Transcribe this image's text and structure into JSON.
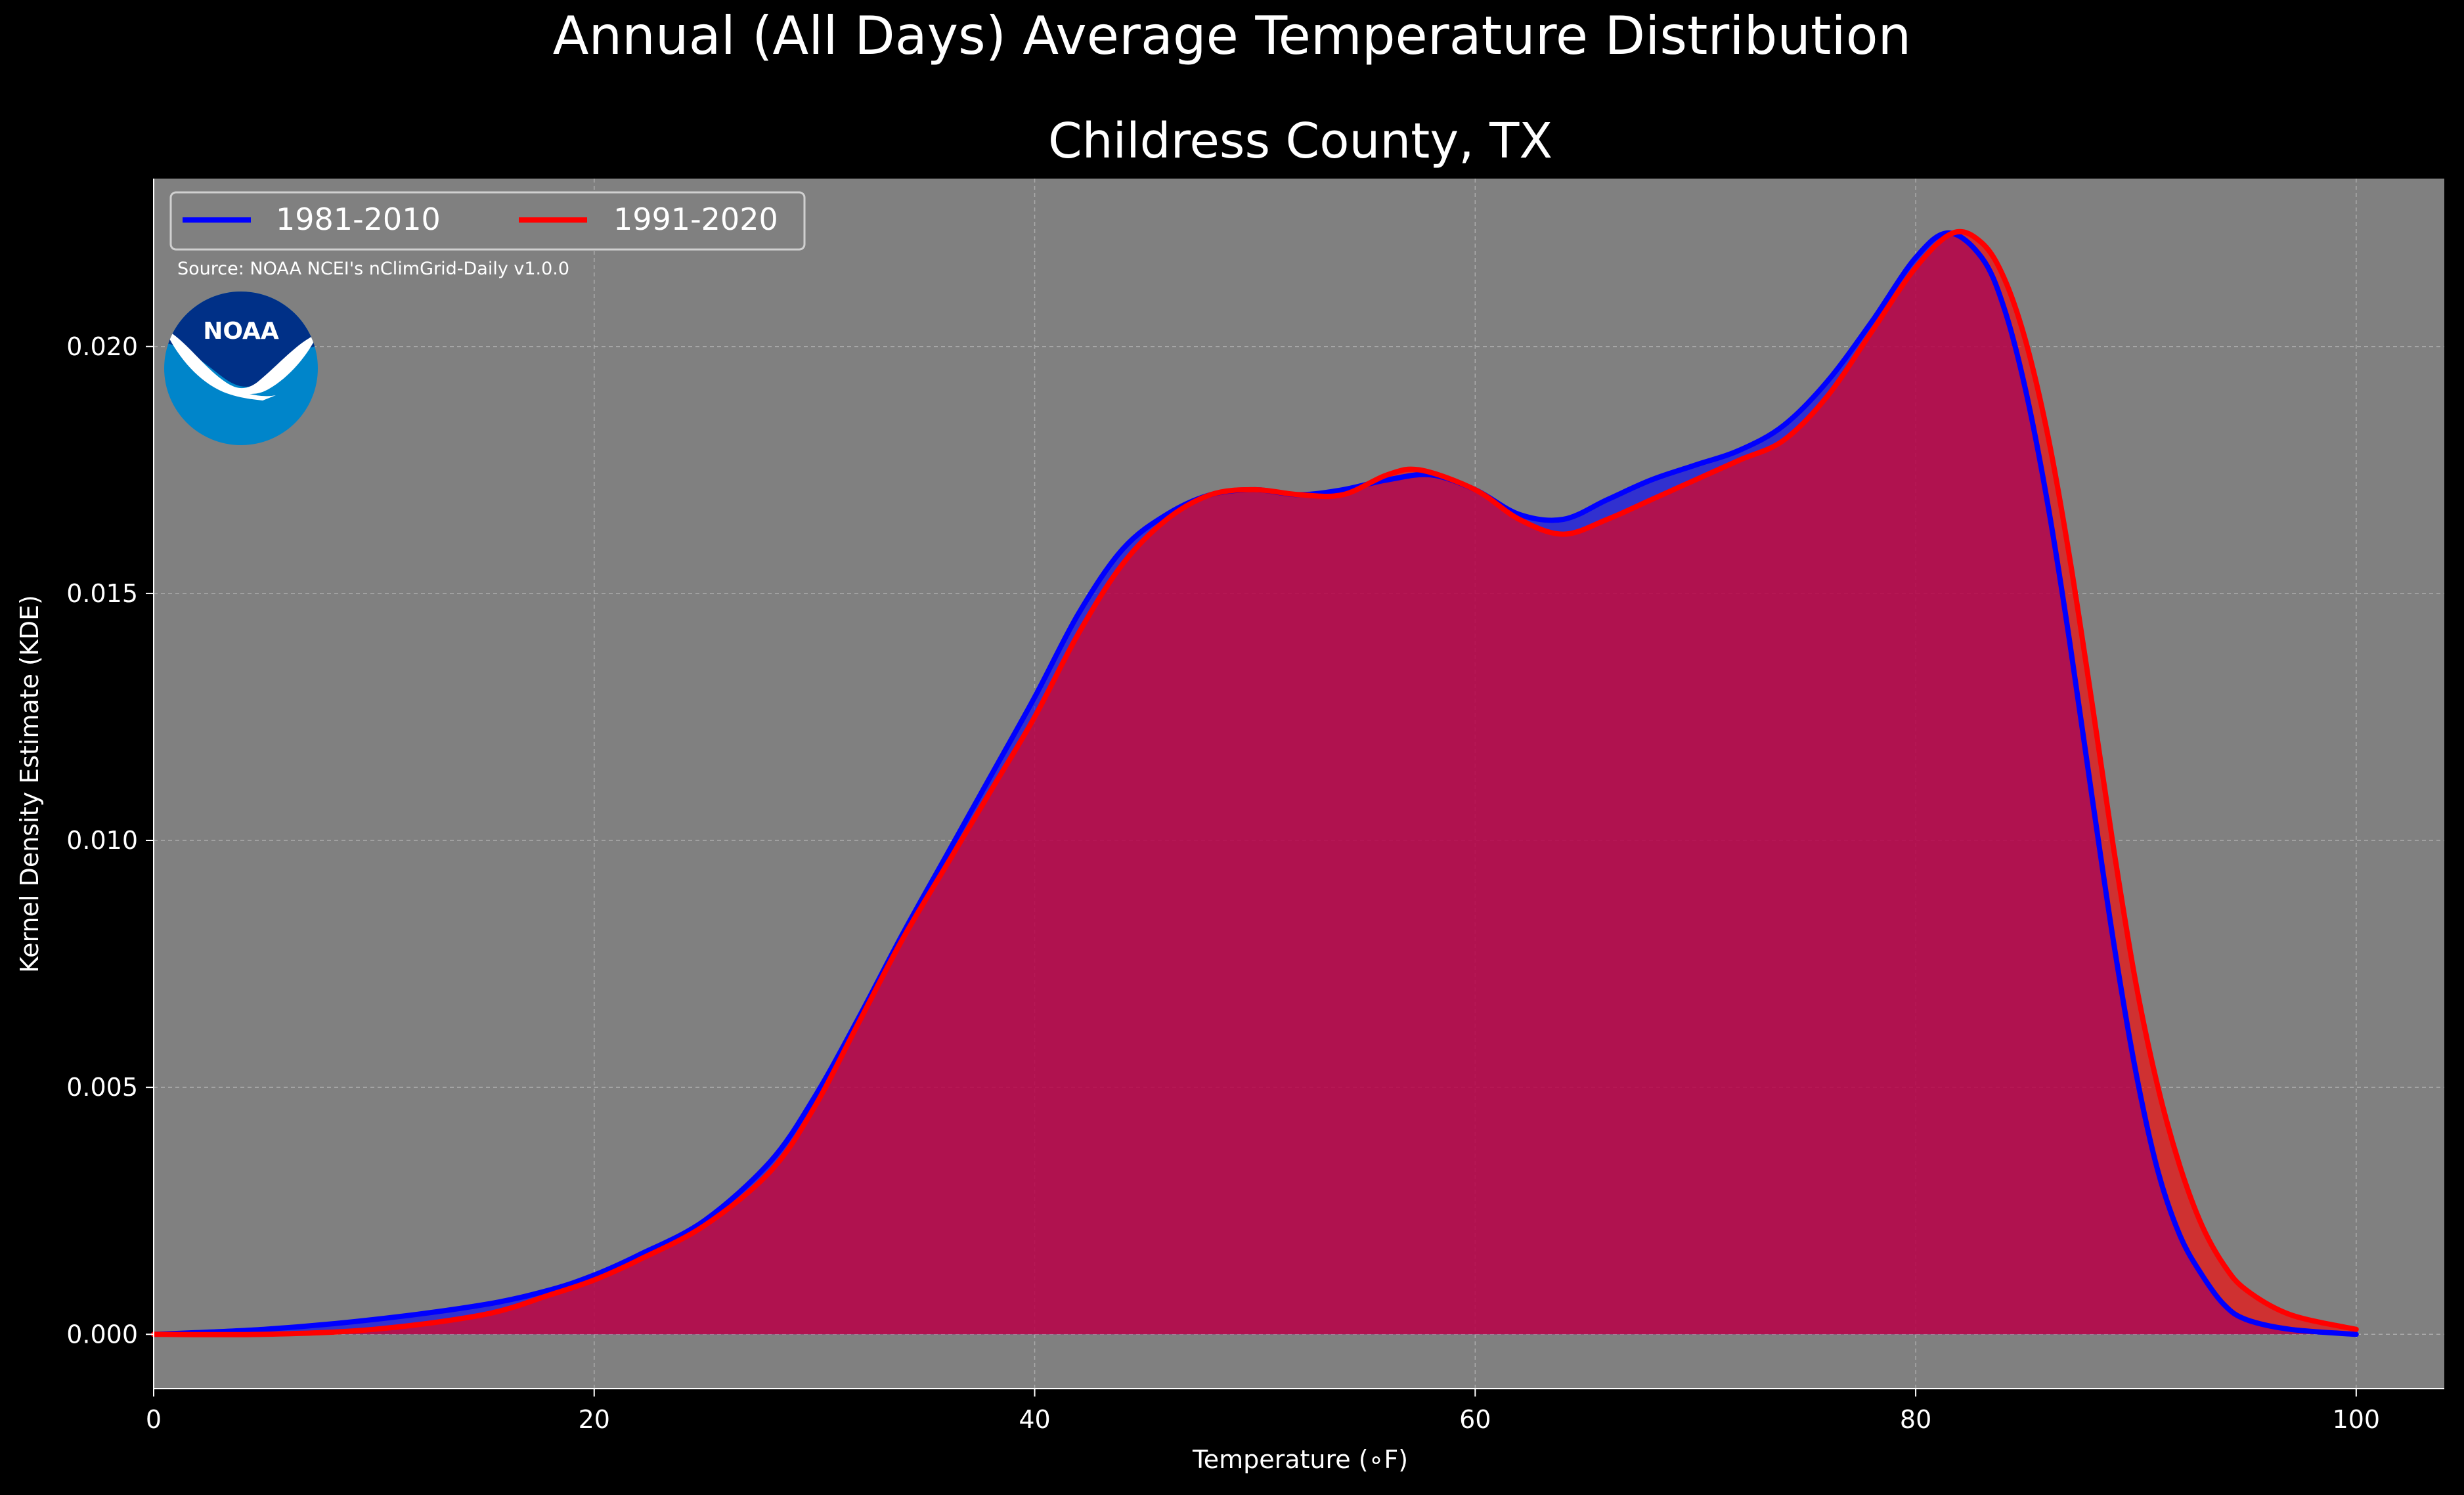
{
  "suptitle": "Annual (All Days) Average Temperature Distribution",
  "source_note": "Source: NOAA NCEI's nClimGrid-Daily v1.0.0",
  "logo": {
    "text": "NOAA",
    "icon": "noaa-logo"
  },
  "colors": {
    "background": "#000000",
    "plot_background": "#808080",
    "series_1981": "#0000ff",
    "series_1991": "#ff0000",
    "fill_overlap": "#9d1f5e",
    "grid": "#bdbdbd",
    "text": "#ffffff"
  },
  "chart_data": {
    "type": "area",
    "title": "Childress County, TX",
    "xlabel": "Temperature (∘F)",
    "ylabel": "Kernel Density Estimate (KDE)",
    "xlim": [
      0,
      104
    ],
    "ylim": [
      -0.0011,
      0.0234
    ],
    "xticks": [
      0,
      20,
      40,
      60,
      80,
      100
    ],
    "xtick_labels": [
      "0",
      "20",
      "40",
      "60",
      "80",
      "100"
    ],
    "yticks": [
      0.0,
      0.005,
      0.01,
      0.015,
      0.02
    ],
    "ytick_labels": [
      "0.000",
      "0.005",
      "0.010",
      "0.015",
      "0.020"
    ],
    "grid": true,
    "legend_position": "top-left",
    "series": [
      {
        "name": "1981-2010",
        "color": "#0000ff",
        "points": [
          [
            0,
            0.0
          ],
          [
            5,
            0.0001
          ],
          [
            10,
            0.0003
          ],
          [
            15,
            0.0006
          ],
          [
            18,
            0.0009
          ],
          [
            20,
            0.0012
          ],
          [
            22,
            0.0016
          ],
          [
            25,
            0.0023
          ],
          [
            28,
            0.0035
          ],
          [
            30,
            0.0048
          ],
          [
            32,
            0.0064
          ],
          [
            34,
            0.0081
          ],
          [
            36,
            0.0097
          ],
          [
            38,
            0.0113
          ],
          [
            40,
            0.0129
          ],
          [
            42,
            0.0146
          ],
          [
            44,
            0.0159
          ],
          [
            46,
            0.0166
          ],
          [
            48,
            0.017
          ],
          [
            50,
            0.0171
          ],
          [
            52,
            0.017
          ],
          [
            54,
            0.0171
          ],
          [
            56,
            0.0173
          ],
          [
            58,
            0.0174
          ],
          [
            60,
            0.0171
          ],
          [
            62,
            0.0166
          ],
          [
            64,
            0.0165
          ],
          [
            66,
            0.0169
          ],
          [
            68,
            0.0173
          ],
          [
            70,
            0.0176
          ],
          [
            72,
            0.0179
          ],
          [
            74,
            0.0184
          ],
          [
            76,
            0.0193
          ],
          [
            78,
            0.0205
          ],
          [
            80,
            0.0218
          ],
          [
            81.5,
            0.0223
          ],
          [
            83,
            0.0218
          ],
          [
            84,
            0.0208
          ],
          [
            85,
            0.0191
          ],
          [
            86,
            0.0168
          ],
          [
            87,
            0.014
          ],
          [
            88,
            0.0109
          ],
          [
            89,
            0.0079
          ],
          [
            90,
            0.0053
          ],
          [
            91,
            0.0033
          ],
          [
            92,
            0.002
          ],
          [
            93,
            0.0012
          ],
          [
            94,
            0.0006
          ],
          [
            95,
            0.0003
          ],
          [
            97,
            0.0001
          ],
          [
            100,
            0.0
          ]
        ]
      },
      {
        "name": "1991-2020",
        "color": "#ff0000",
        "points": [
          [
            0,
            0.0
          ],
          [
            5,
            0.0
          ],
          [
            10,
            0.0001
          ],
          [
            15,
            0.0004
          ],
          [
            18,
            0.0008
          ],
          [
            20,
            0.0011
          ],
          [
            22,
            0.0015
          ],
          [
            25,
            0.0022
          ],
          [
            28,
            0.0033
          ],
          [
            30,
            0.0046
          ],
          [
            32,
            0.0063
          ],
          [
            34,
            0.008
          ],
          [
            36,
            0.0095
          ],
          [
            38,
            0.011
          ],
          [
            40,
            0.0125
          ],
          [
            42,
            0.0142
          ],
          [
            44,
            0.0156
          ],
          [
            46,
            0.0165
          ],
          [
            48,
            0.017
          ],
          [
            50,
            0.0171
          ],
          [
            52,
            0.017
          ],
          [
            54,
            0.017
          ],
          [
            56,
            0.0174
          ],
          [
            57.5,
            0.0175
          ],
          [
            60,
            0.0171
          ],
          [
            62,
            0.0165
          ],
          [
            64,
            0.0162
          ],
          [
            66,
            0.0165
          ],
          [
            68,
            0.0169
          ],
          [
            70,
            0.0173
          ],
          [
            72,
            0.0177
          ],
          [
            74,
            0.0181
          ],
          [
            76,
            0.019
          ],
          [
            78,
            0.0203
          ],
          [
            80,
            0.0216
          ],
          [
            81.7,
            0.0223
          ],
          [
            83,
            0.0221
          ],
          [
            84,
            0.0214
          ],
          [
            85,
            0.0201
          ],
          [
            86,
            0.0182
          ],
          [
            87,
            0.0157
          ],
          [
            88,
            0.0128
          ],
          [
            89,
            0.0098
          ],
          [
            90,
            0.0071
          ],
          [
            91,
            0.005
          ],
          [
            92,
            0.0034
          ],
          [
            93,
            0.0022
          ],
          [
            94,
            0.0014
          ],
          [
            95,
            0.0009
          ],
          [
            97,
            0.0004
          ],
          [
            100,
            0.0001
          ]
        ]
      }
    ]
  }
}
